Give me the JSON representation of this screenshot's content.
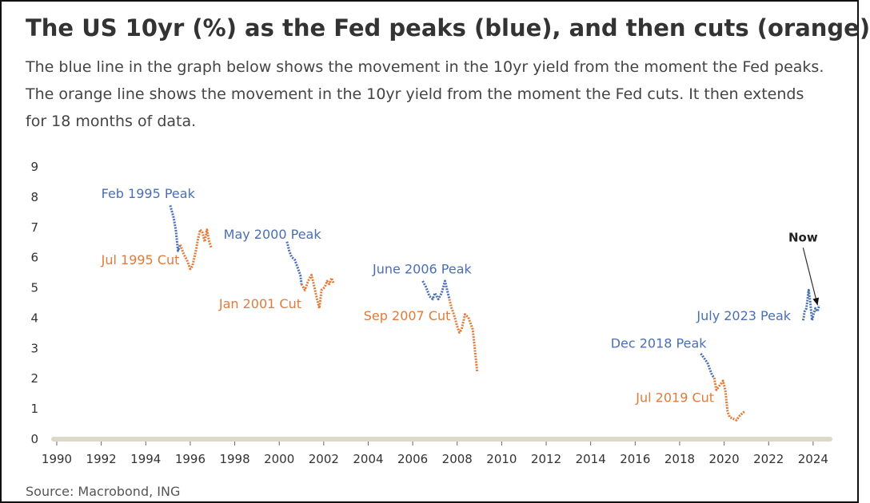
{
  "title": "The US 10yr (%) as the Fed peaks (blue), and then cuts (orange)",
  "subtitle_lines": [
    "The blue line in the graph below shows the movement in the 10yr yield from the moment the Fed peaks.",
    "The orange line shows the movement in the 10yr yield from the moment the Fed cuts. It then extends",
    "for 18 months of data."
  ],
  "source": "Source: Macrobond, ING",
  "colors": {
    "peak": "#4a6fb5",
    "cut": "#e07b39",
    "axis_band": "#ddd8c9",
    "text": "#333333"
  },
  "chart_data": {
    "type": "line",
    "x_ticks": [
      1990,
      1992,
      1994,
      1996,
      1998,
      2000,
      2002,
      2004,
      2006,
      2008,
      2010,
      2012,
      2014,
      2016,
      2018,
      2020,
      2022,
      2024
    ],
    "y_ticks": [
      0,
      1,
      2,
      3,
      4,
      5,
      6,
      7,
      8,
      9
    ],
    "xlim": [
      1990,
      2024.4
    ],
    "ylim": [
      0,
      9
    ],
    "grid": false,
    "series": [
      {
        "color": "peak",
        "points": [
          [
            1995.1,
            7.7
          ],
          [
            1995.25,
            7.3
          ],
          [
            1995.35,
            6.9
          ],
          [
            1995.45,
            6.2
          ],
          [
            1995.55,
            6.4
          ]
        ]
      },
      {
        "color": "cut",
        "points": [
          [
            1995.55,
            6.4
          ],
          [
            1995.7,
            6.1
          ],
          [
            1995.85,
            5.9
          ],
          [
            1996.0,
            5.6
          ],
          [
            1996.1,
            5.7
          ],
          [
            1996.25,
            6.2
          ],
          [
            1996.35,
            6.6
          ],
          [
            1996.45,
            6.9
          ],
          [
            1996.55,
            6.8
          ],
          [
            1996.65,
            6.5
          ],
          [
            1996.75,
            6.9
          ],
          [
            1996.85,
            6.5
          ],
          [
            1996.95,
            6.3
          ]
        ]
      },
      {
        "color": "peak",
        "points": [
          [
            2000.35,
            6.5
          ],
          [
            2000.45,
            6.2
          ],
          [
            2000.55,
            6.0
          ],
          [
            2000.7,
            5.9
          ],
          [
            2000.85,
            5.6
          ],
          [
            2000.95,
            5.4
          ],
          [
            2001.0,
            5.1
          ]
        ]
      },
      {
        "color": "cut",
        "points": [
          [
            2001.0,
            5.1
          ],
          [
            2001.15,
            4.9
          ],
          [
            2001.3,
            5.2
          ],
          [
            2001.45,
            5.4
          ],
          [
            2001.55,
            5.1
          ],
          [
            2001.7,
            4.6
          ],
          [
            2001.8,
            4.3
          ],
          [
            2001.9,
            4.9
          ],
          [
            2002.05,
            5.0
          ],
          [
            2002.15,
            5.2
          ],
          [
            2002.25,
            5.1
          ],
          [
            2002.35,
            5.3
          ],
          [
            2002.45,
            5.1
          ]
        ]
      },
      {
        "color": "peak",
        "points": [
          [
            2006.45,
            5.2
          ],
          [
            2006.6,
            5.0
          ],
          [
            2006.75,
            4.7
          ],
          [
            2006.9,
            4.6
          ],
          [
            2007.0,
            4.8
          ],
          [
            2007.15,
            4.6
          ],
          [
            2007.3,
            4.8
          ],
          [
            2007.45,
            5.2
          ],
          [
            2007.55,
            4.9
          ],
          [
            2007.65,
            4.6
          ]
        ]
      },
      {
        "color": "cut",
        "points": [
          [
            2007.65,
            4.6
          ],
          [
            2007.75,
            4.3
          ],
          [
            2007.85,
            4.1
          ],
          [
            2008.0,
            3.7
          ],
          [
            2008.1,
            3.5
          ],
          [
            2008.2,
            3.6
          ],
          [
            2008.35,
            4.1
          ],
          [
            2008.5,
            4.0
          ],
          [
            2008.6,
            3.8
          ],
          [
            2008.7,
            3.6
          ],
          [
            2008.8,
            2.9
          ],
          [
            2008.9,
            2.2
          ]
        ]
      },
      {
        "color": "peak",
        "points": [
          [
            2018.95,
            2.8
          ],
          [
            2019.05,
            2.7
          ],
          [
            2019.15,
            2.6
          ],
          [
            2019.25,
            2.5
          ],
          [
            2019.35,
            2.3
          ],
          [
            2019.45,
            2.1
          ],
          [
            2019.55,
            2.0
          ]
        ]
      },
      {
        "color": "cut",
        "points": [
          [
            2019.55,
            2.0
          ],
          [
            2019.65,
            1.6
          ],
          [
            2019.75,
            1.7
          ],
          [
            2019.85,
            1.8
          ],
          [
            2019.95,
            1.9
          ],
          [
            2020.05,
            1.6
          ],
          [
            2020.15,
            0.9
          ],
          [
            2020.25,
            0.7
          ],
          [
            2020.4,
            0.65
          ],
          [
            2020.55,
            0.6
          ],
          [
            2020.7,
            0.75
          ],
          [
            2020.85,
            0.85
          ],
          [
            2020.95,
            0.9
          ]
        ]
      },
      {
        "color": "peak",
        "points": [
          [
            2023.55,
            3.9
          ],
          [
            2023.62,
            4.2
          ],
          [
            2023.7,
            4.3
          ],
          [
            2023.8,
            4.9
          ],
          [
            2023.87,
            4.5
          ],
          [
            2023.95,
            3.9
          ],
          [
            2024.02,
            4.1
          ],
          [
            2024.1,
            4.3
          ],
          [
            2024.2,
            4.2
          ],
          [
            2024.27,
            4.4
          ]
        ]
      }
    ],
    "annotations": [
      {
        "text": "Feb 1995 Peak",
        "color": "peak"
      },
      {
        "text": "Jul 1995 Cut",
        "color": "cut"
      },
      {
        "text": "May 2000 Peak",
        "color": "peak"
      },
      {
        "text": "Jan 2001 Cut",
        "color": "cut"
      },
      {
        "text": "June 2006 Peak",
        "color": "peak"
      },
      {
        "text": "Sep 2007 Cut",
        "color": "cut"
      },
      {
        "text": "Dec 2018 Peak",
        "color": "peak"
      },
      {
        "text": "Jul 2019 Cut",
        "color": "cut"
      },
      {
        "text": "July 2023 Peak",
        "color": "peak"
      },
      {
        "text": "Now",
        "color": "dark"
      }
    ]
  }
}
